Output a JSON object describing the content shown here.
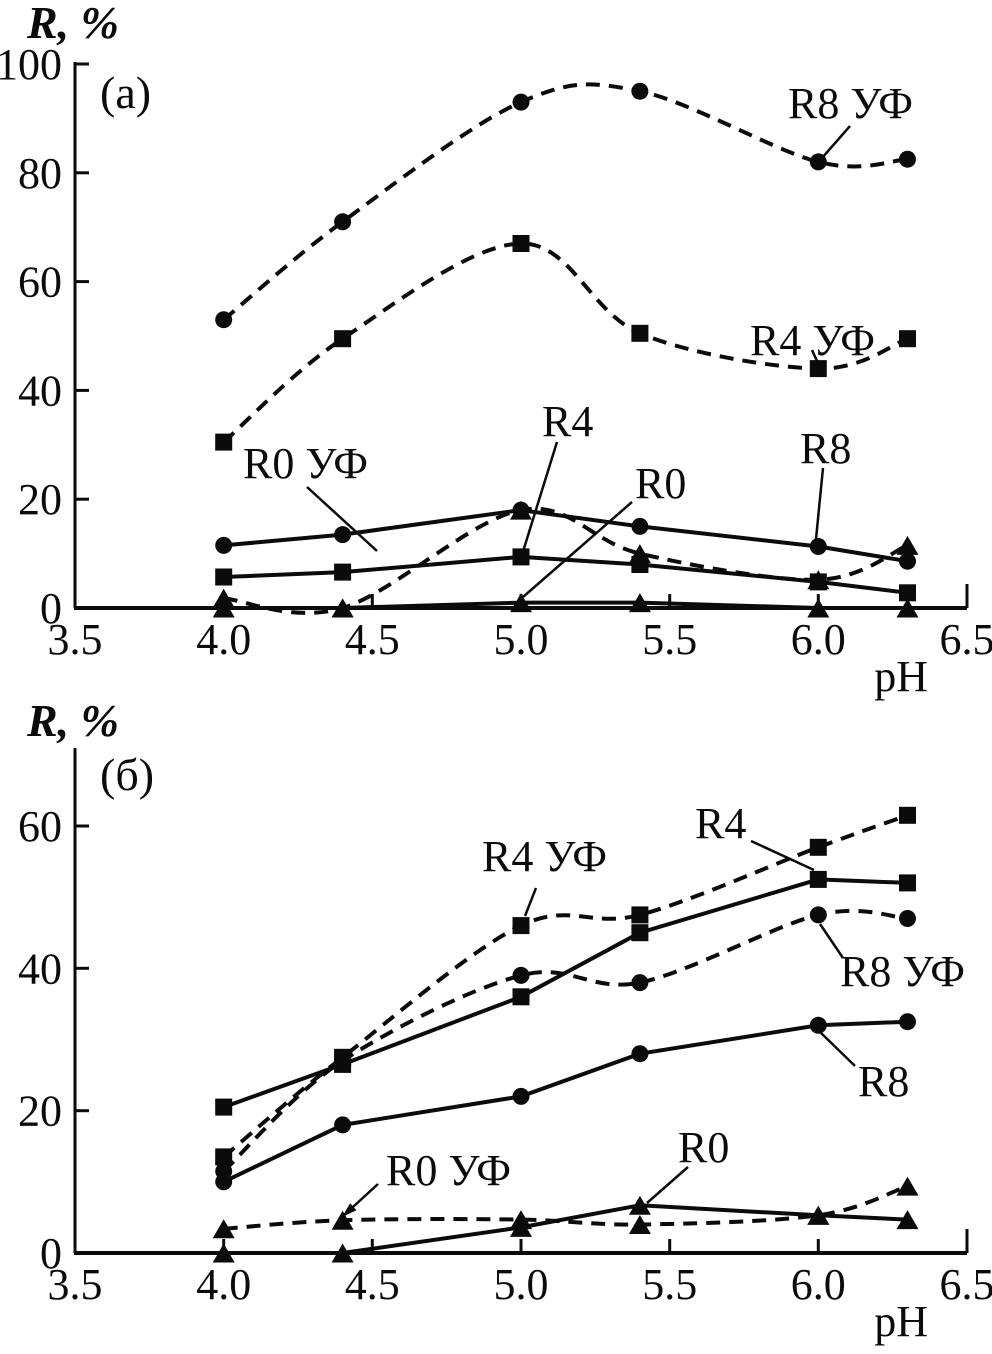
{
  "figure": {
    "description_visible_text_only": "",
    "y_axis_title": "R, %",
    "x_axis_title": "pH"
  },
  "chart_data": [
    {
      "id": "a",
      "type": "line",
      "panel_label": "(a)",
      "y_axis": {
        "title": "R, %",
        "tick_labels": [
          "0",
          "20",
          "40",
          "60",
          "80",
          "100"
        ],
        "min": 0,
        "max": 100,
        "grid": false
      },
      "x_axis": {
        "title": "pH",
        "tick_labels": [
          "3.5",
          "4.0",
          "4.5",
          "5.0",
          "5.5",
          "6.0",
          "6.5"
        ],
        "min": 3.5,
        "max": 6.5,
        "grid": false
      },
      "x": [
        4.0,
        4.4,
        5.0,
        5.4,
        6.0,
        6.3
      ],
      "series": [
        {
          "name": "R8 УФ",
          "marker": "circle",
          "line_style": "dashed",
          "values": [
            53,
            71,
            93,
            95,
            82,
            82.5
          ]
        },
        {
          "name": "R4 УФ",
          "marker": "square",
          "line_style": "dashed",
          "values": [
            30.5,
            49.5,
            67,
            50.5,
            44,
            49.5
          ]
        },
        {
          "name": "R0 УФ",
          "marker": "triangle",
          "line_style": "dashed",
          "values": [
            1.8,
            0,
            18,
            10,
            5.2,
            11.5
          ]
        },
        {
          "name": "R8",
          "marker": "circle",
          "line_style": "solid",
          "values": [
            11.5,
            13.5,
            18,
            15,
            11.3,
            8.6
          ]
        },
        {
          "name": "R4",
          "marker": "square",
          "line_style": "solid",
          "values": [
            5.7,
            6.6,
            9.4,
            8,
            4.8,
            2.8
          ]
        },
        {
          "name": "R0",
          "marker": "triangle",
          "line_style": "solid",
          "values": [
            0,
            0,
            1,
            1,
            0,
            0
          ]
        }
      ],
      "annotations": [
        "R8 УФ",
        "R4 УФ",
        "R0 УФ",
        "R4",
        "R0",
        "R8"
      ],
      "line_color": "#0b0b0b"
    },
    {
      "id": "b",
      "type": "line",
      "panel_label": "(б)",
      "y_axis": {
        "title": "R, %",
        "tick_labels": [
          "0",
          "20",
          "40",
          "60"
        ],
        "min": 0,
        "max": 60,
        "grid": false
      },
      "x_axis": {
        "title": "pH",
        "tick_labels": [
          "3.5",
          "4.0",
          "4.5",
          "5.0",
          "5.5",
          "6.0",
          "6.5"
        ],
        "min": 3.5,
        "max": 6.5,
        "grid": false
      },
      "x": [
        4.0,
        4.4,
        5.0,
        5.4,
        6.0,
        6.3
      ],
      "series": [
        {
          "name": "R4 УФ",
          "marker": "square",
          "line_style": "dashed",
          "values": [
            13.5,
            27.5,
            46,
            47.5,
            57,
            61.5
          ]
        },
        {
          "name": "R8 УФ",
          "marker": "circle",
          "line_style": "dashed",
          "values": [
            11.5,
            27,
            39,
            38,
            47.5,
            47
          ]
        },
        {
          "name": "R0 УФ",
          "marker": "triangle",
          "line_style": "dashed",
          "values": [
            3.4,
            4.6,
            4.7,
            4,
            5.3,
            9.4
          ]
        },
        {
          "name": "R4",
          "marker": "square",
          "line_style": "solid",
          "values": [
            20.5,
            26.5,
            36,
            45,
            52.5,
            52
          ]
        },
        {
          "name": "R8",
          "marker": "circle",
          "line_style": "solid",
          "values": [
            10,
            18,
            22,
            28,
            32,
            32.5
          ]
        },
        {
          "name": "R0",
          "marker": "triangle",
          "line_style": "solid",
          "values": [
            0,
            0,
            3.6,
            6.7,
            5.3,
            4.7
          ]
        }
      ],
      "annotations": [
        "R4",
        "R4 УФ",
        "R8 УФ",
        "R8",
        "R0 УФ",
        "R0"
      ],
      "line_color": "#0b0b0b"
    }
  ]
}
